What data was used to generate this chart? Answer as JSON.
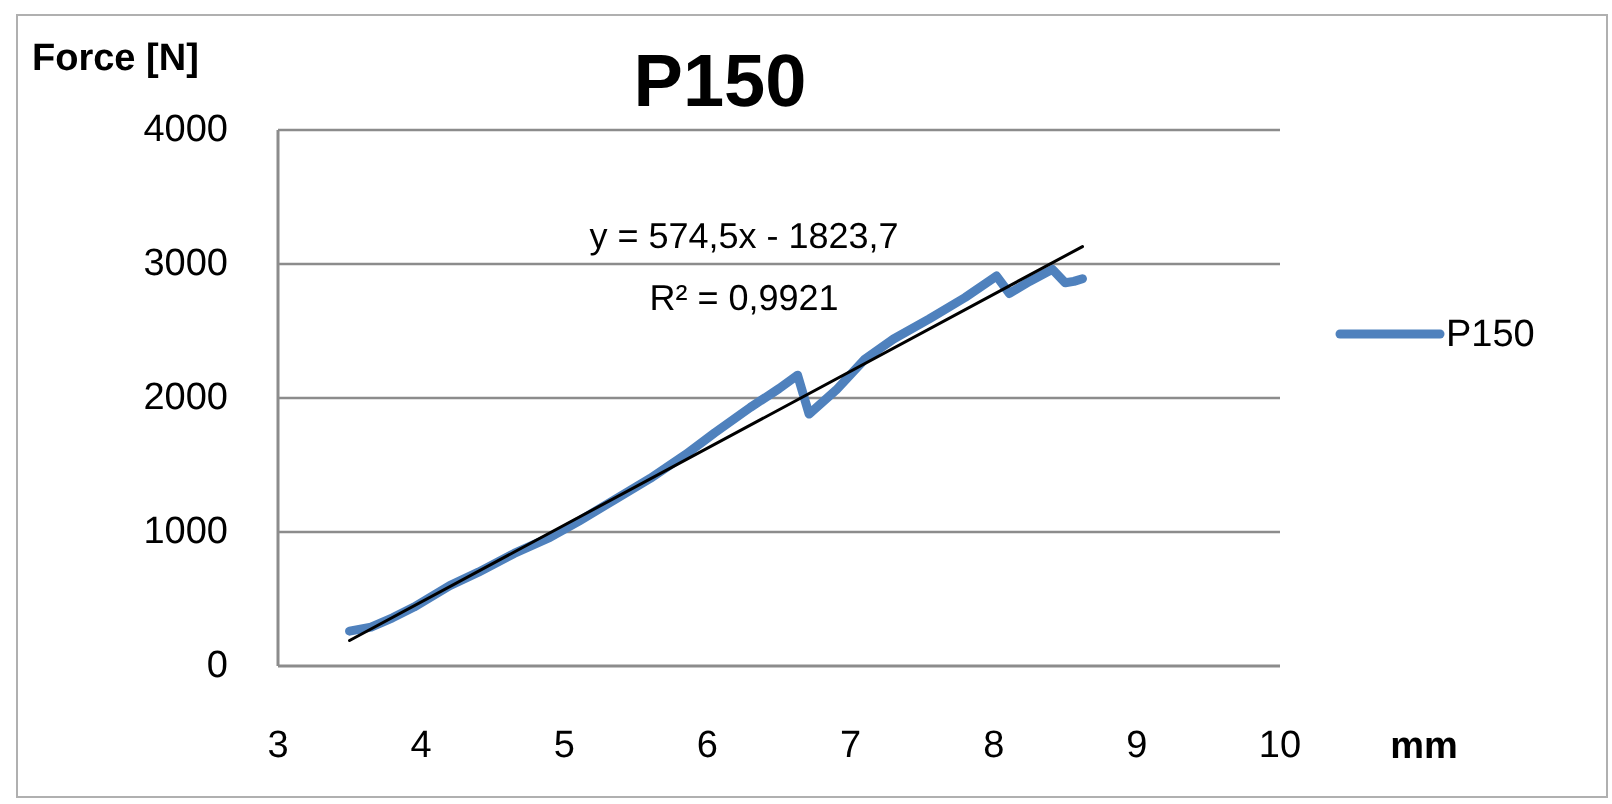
{
  "chart_data": {
    "type": "line",
    "title": "P150",
    "xlabel": "mm",
    "ylabel": "Force [N]",
    "x": [
      3.5,
      3.65,
      3.8,
      3.95,
      4.2,
      4.4,
      4.65,
      4.9,
      5.1,
      5.35,
      5.6,
      5.85,
      6.05,
      6.3,
      6.5,
      6.63,
      6.71,
      6.9,
      7.1,
      7.3,
      7.55,
      7.8,
      8.02,
      8.11,
      8.25,
      8.41,
      8.5,
      8.56,
      8.62
    ],
    "series": [
      {
        "name": "P150",
        "color": "#4f81bd",
        "values": [
          260,
          290,
          360,
          440,
          600,
          700,
          840,
          960,
          1080,
          1240,
          1400,
          1580,
          1740,
          1930,
          2070,
          2170,
          1880,
          2060,
          2290,
          2440,
          2590,
          2750,
          2910,
          2780,
          2870,
          2960,
          2860,
          2870,
          2890
        ]
      },
      {
        "type": "line",
        "color": "#000000",
        "x": [
          3.5,
          8.62
        ],
        "values": [
          190,
          3130
        ]
      }
    ],
    "xlim": [
      3,
      10
    ],
    "xticks": [
      3,
      4,
      5,
      6,
      7,
      8,
      9,
      10
    ],
    "ylim": [
      0,
      4000
    ],
    "yticks": [
      0,
      1000,
      2000,
      3000,
      4000
    ],
    "grid": "y",
    "legend": "right",
    "annotations": [
      "y = 574,5x - 1823,7",
      "R² = 0,9921"
    ]
  }
}
